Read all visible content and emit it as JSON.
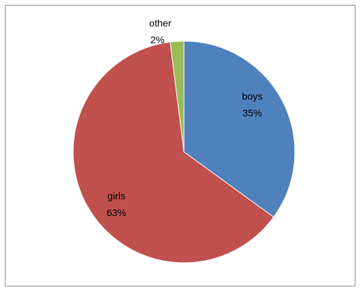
{
  "chart_data": {
    "type": "pie",
    "title": "",
    "slices": [
      {
        "label": "boys",
        "percent_label": "35%",
        "value": 35,
        "color": "#4f81bd"
      },
      {
        "label": "girls",
        "percent_label": "63%",
        "value": 63,
        "color": "#c0504d"
      },
      {
        "label": "other",
        "percent_label": "2%",
        "value": 2,
        "color": "#9bbb59"
      }
    ],
    "legend": "none",
    "start_angle": "12 o'clock, clockwise"
  }
}
